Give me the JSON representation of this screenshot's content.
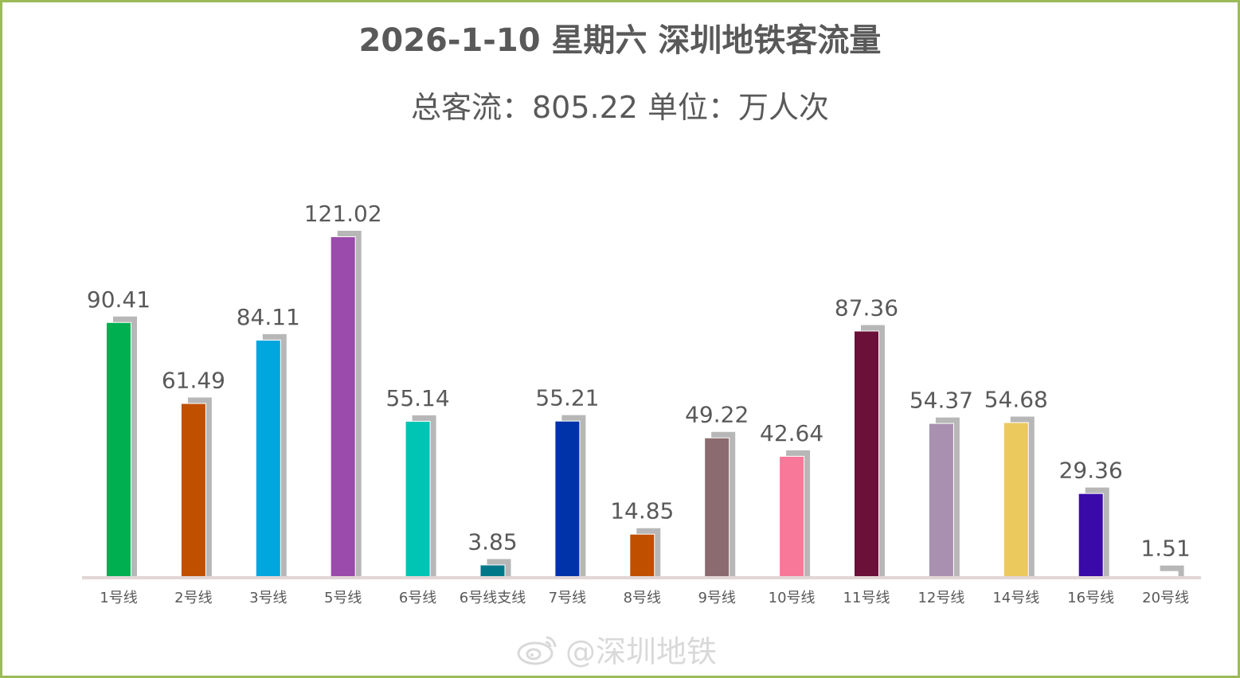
{
  "title": "2026-1-10 星期六 深圳地铁客流量",
  "subtitle": "总客流：805.22 单位：万人次",
  "watermark": "@深圳地铁",
  "colors": {
    "border": "#9bbb59",
    "shadow": "#b7b7b7",
    "baseline": "#e2d6d6",
    "text": "#595959"
  },
  "chart_data": {
    "type": "bar",
    "title": "2026-1-10 星期六 深圳地铁客流量",
    "subtitle": "总客流：805.22 单位：万人次",
    "xlabel": "",
    "ylabel": "",
    "grid": false,
    "legend": "none",
    "categories": [
      "1号线",
      "2号线",
      "3号线",
      "5号线",
      "6号线",
      "6号线支线",
      "7号线",
      "8号线",
      "9号线",
      "10号线",
      "11号线",
      "12号线",
      "14号线",
      "16号线",
      "20号线"
    ],
    "values": [
      90.41,
      61.49,
      84.11,
      121.02,
      55.14,
      3.85,
      55.21,
      14.85,
      49.22,
      42.64,
      87.36,
      54.37,
      54.68,
      29.36,
      1.51
    ],
    "labels": [
      "90.41",
      "61.49",
      "84.11",
      "121.02",
      "55.14",
      "3.85",
      "55.21",
      "14.85",
      "49.22",
      "42.64",
      "87.36",
      "54.37",
      "54.68",
      "29.36",
      "1.51"
    ],
    "colors": [
      "#00b050",
      "#c05000",
      "#00a6de",
      "#9b4bab",
      "#00c4b4",
      "#00788a",
      "#0032aa",
      "#c05000",
      "#8b6b6f",
      "#f77898",
      "#6b1139",
      "#a990b0",
      "#ecc95c",
      "#3a0aa8",
      "#ffffff"
    ],
    "ylim": [
      0,
      130
    ]
  }
}
